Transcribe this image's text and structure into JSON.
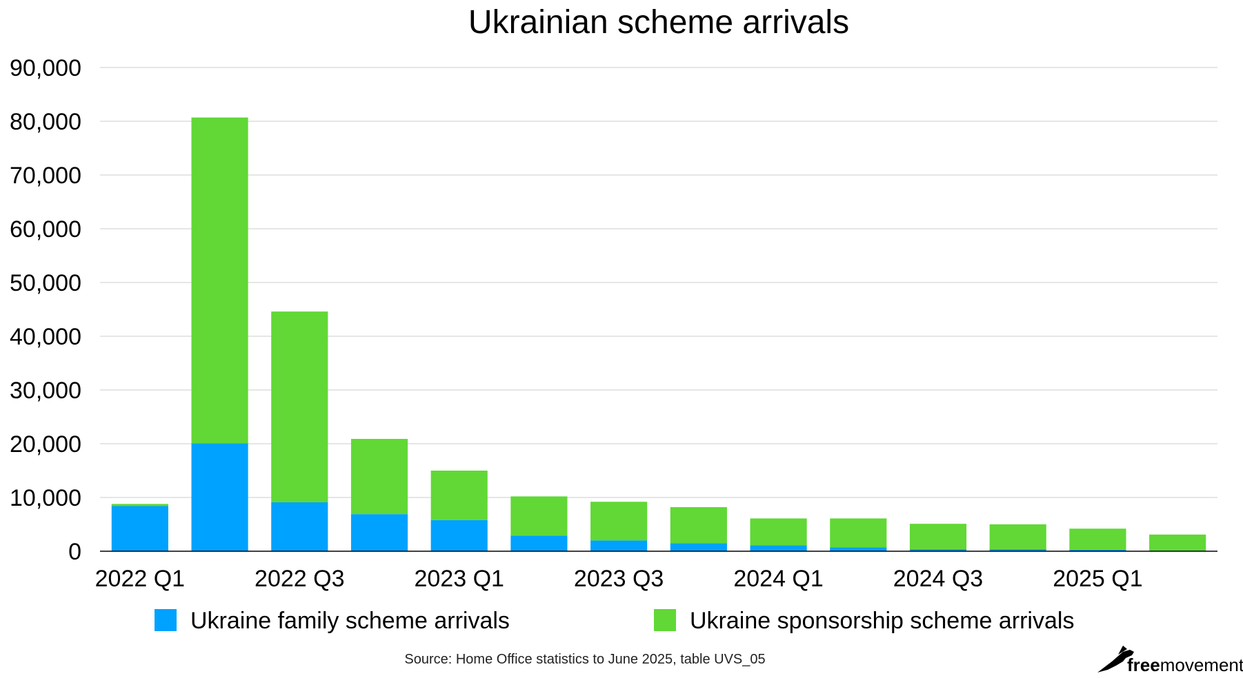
{
  "chart_data": {
    "type": "bar",
    "stacked": true,
    "title": "Ukrainian scheme arrivals",
    "xlabel": "",
    "ylabel": "",
    "categories": [
      "2022 Q1",
      "2022 Q2",
      "2022 Q3",
      "2022 Q4",
      "2023 Q1",
      "2023 Q2",
      "2023 Q3",
      "2023 Q4",
      "2024 Q1",
      "2024 Q2",
      "2024 Q3",
      "2024 Q4",
      "2025 Q1",
      "2025 Q2"
    ],
    "x_tick_labels": [
      "2022 Q1",
      "2022 Q3",
      "2023 Q1",
      "2023 Q3",
      "2024 Q1",
      "2024 Q3",
      "2025 Q1"
    ],
    "ylim": [
      0,
      90000
    ],
    "y_ticks": [
      0,
      10000,
      20000,
      30000,
      40000,
      50000,
      60000,
      70000,
      80000,
      90000
    ],
    "y_tick_labels": [
      "0",
      "10,000",
      "20,000",
      "30,000",
      "40,000",
      "50,000",
      "60,000",
      "70,000",
      "80,000",
      "90,000"
    ],
    "grid": true,
    "legend_position": "bottom",
    "series": [
      {
        "name": "Ukraine family scheme arrivals",
        "color": "#00a2ff",
        "values": [
          8400,
          20100,
          9100,
          6900,
          5800,
          2900,
          2000,
          1500,
          1100,
          700,
          400,
          400,
          300,
          100
        ]
      },
      {
        "name": "Ukraine sponsorship scheme arrivals",
        "color": "#61d836",
        "values": [
          400,
          60600,
          35500,
          14000,
          9200,
          7300,
          7200,
          6700,
          5000,
          5400,
          4700,
          4600,
          3900,
          3000
        ]
      }
    ]
  },
  "source": "Source: Home Office statistics to June 2025, table UVS_05",
  "logo": {
    "free": "free",
    "movement": "movement",
    "icon": "bird-icon"
  },
  "colors": {
    "grid": "#cccccc",
    "axis": "#000000"
  }
}
